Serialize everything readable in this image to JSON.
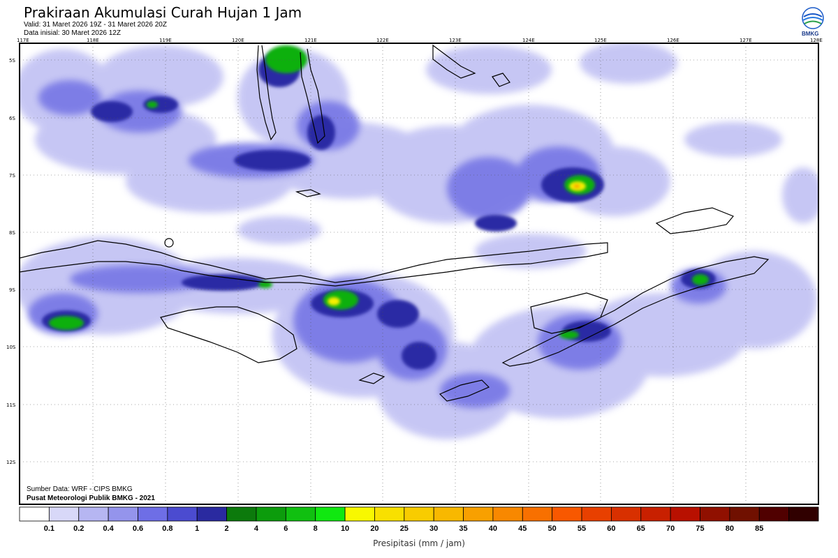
{
  "title": "Prakiraan Akumulasi Curah Hujan 1 Jam",
  "valid": "Valid: 31 Maret 2026 19Z - 31 Maret 2026 20Z",
  "initial": "Data inisial: 30 Maret 2026 12Z",
  "logo_text": "BMKG",
  "source_line1": "Sumber Data: WRF - CIPS BMKG",
  "source_line2": "Pusat Meteorologi Publik BMKG - 2021",
  "unit_label": "Presipitasi (mm / jam)",
  "lon_labels": [
    "117E",
    "118E",
    "119E",
    "120E",
    "121E",
    "122E",
    "123E",
    "124E",
    "125E",
    "126E",
    "127E",
    "128E"
  ],
  "lat_labels": [
    "5S",
    "6S",
    "7S",
    "8S",
    "9S",
    "10S",
    "11S",
    "12S"
  ],
  "legend": {
    "colors": [
      "#ffffff",
      "#d8d8f8",
      "#b6b6f2",
      "#9494ec",
      "#6e6ee6",
      "#4b4bd0",
      "#2a2aa0",
      "#0c7a0c",
      "#0c9c0c",
      "#10c010",
      "#10e810",
      "#f8f800",
      "#f8e000",
      "#f8cc00",
      "#f8b800",
      "#f8a000",
      "#f88800",
      "#f87000",
      "#f85800",
      "#e84000",
      "#d83000",
      "#c82000",
      "#b81000",
      "#901000",
      "#701000",
      "#500000",
      "#300000"
    ],
    "labels": [
      "0.1",
      "0.2",
      "0.4",
      "0.6",
      "0.8",
      "1",
      "2",
      "4",
      "6",
      "8",
      "10",
      "20",
      "25",
      "30",
      "35",
      "40",
      "45",
      "50",
      "55",
      "60",
      "65",
      "70",
      "75",
      "80",
      "85"
    ]
  }
}
